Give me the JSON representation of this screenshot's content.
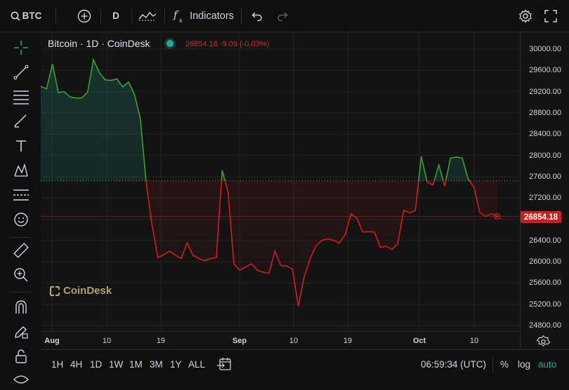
{
  "toolbar": {
    "symbol": "BTC",
    "interval": "D",
    "indicators_label": "Indicators",
    "icons": [
      "search-icon",
      "add-symbol-icon",
      "chart-type-icon",
      "fx-icon",
      "undo-icon",
      "redo-icon",
      "settings-icon",
      "fullscreen-icon"
    ]
  },
  "legend": {
    "title": "Bitcoin · 1D · CoinDesk",
    "values": "26854.18 -9.09 (-0.03%)"
  },
  "watermark": "CoinDesk",
  "last_price_tag": "26854.18",
  "price_axis": [
    "30000.00",
    "29600.00",
    "29200.00",
    "28800.00",
    "28400.00",
    "28000.00",
    "27600.00",
    "27200.00",
    "26800.00",
    "26400.00",
    "26000.00",
    "25600.00",
    "25200.00",
    "24800.00"
  ],
  "time_axis": [
    {
      "label": "Aug",
      "bold": true
    },
    {
      "label": "10",
      "bold": false
    },
    {
      "label": "19",
      "bold": false
    },
    {
      "label": "Sep",
      "bold": true
    },
    {
      "label": "10",
      "bold": false
    },
    {
      "label": "19",
      "bold": false
    },
    {
      "label": "Oct",
      "bold": true
    },
    {
      "label": "10",
      "bold": false
    }
  ],
  "bottombar": {
    "ranges": [
      "1H",
      "4H",
      "1D",
      "1W",
      "1M",
      "3M",
      "1Y",
      "ALL"
    ],
    "clock": "06:59:34 (UTC)",
    "percent_label": "%",
    "log_label": "log",
    "auto_label": "auto"
  },
  "colors": {
    "up": "#22ab94",
    "up_line": "#3aa12a",
    "down_line": "#d11d1d",
    "baseline": "#b0a36a"
  },
  "chart_data": {
    "type": "area",
    "title": "Bitcoin · 1D · CoinDesk",
    "baseline": 27520,
    "ylim": [
      24600,
      30100
    ],
    "series": [
      {
        "values": [
          29300,
          29250,
          29720,
          29180,
          29200,
          29100,
          29080,
          29080,
          29190,
          29800,
          29560,
          29420,
          29410,
          29440,
          29290,
          29380,
          29150,
          28700,
          27500,
          26700,
          26080,
          26130,
          26200,
          26120,
          26060,
          26350,
          26120,
          26060,
          26020,
          26060,
          26080,
          27720,
          27300,
          25960,
          25840,
          25900,
          25960,
          25840,
          25800,
          25780,
          26200,
          25930,
          25920,
          25860,
          25160,
          25720,
          26050,
          26300,
          26400,
          26430,
          26400,
          26350,
          26510,
          26900,
          26820,
          26560,
          26560,
          26560,
          26270,
          26290,
          26230,
          26340,
          26970,
          26920,
          26960,
          27980,
          27500,
          27440,
          27820,
          27420,
          27950,
          27970,
          27950,
          27560,
          27400,
          26930,
          26850,
          26900,
          26854.18
        ]
      }
    ]
  }
}
